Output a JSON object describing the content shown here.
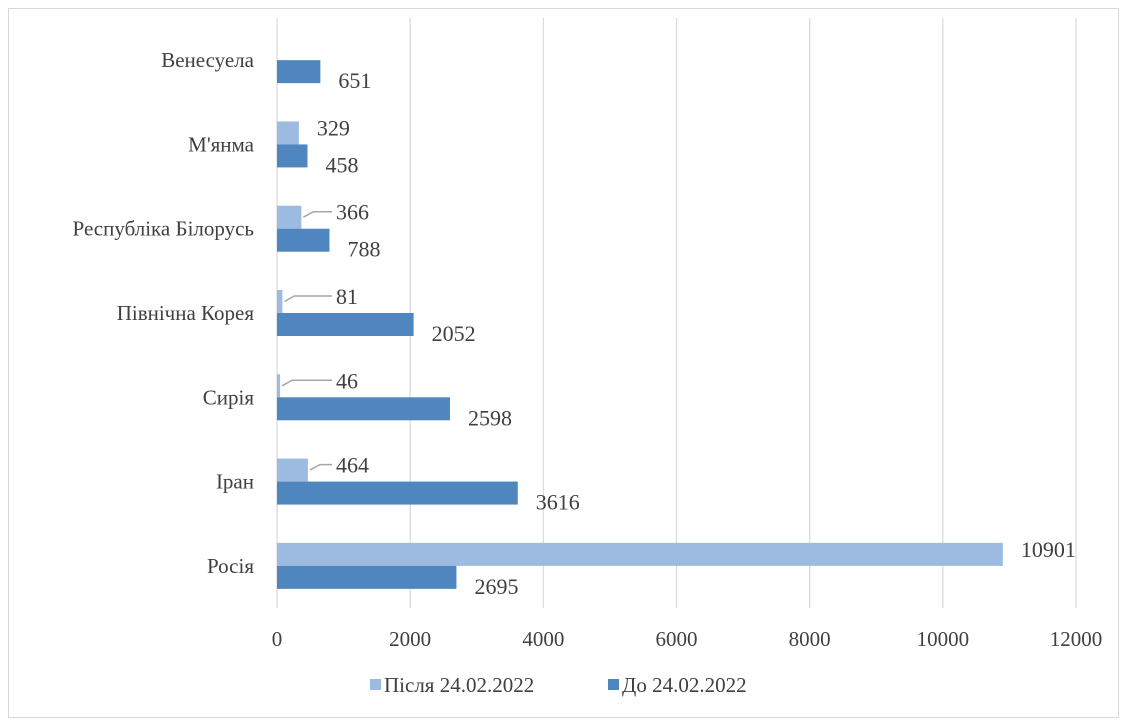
{
  "chart_data": {
    "type": "bar",
    "orientation": "horizontal",
    "title": "",
    "xlabel": "",
    "ylabel": "",
    "xlim": [
      0,
      12000
    ],
    "x_ticks": [
      0,
      2000,
      4000,
      6000,
      8000,
      10000,
      12000
    ],
    "grid": "vertical",
    "legend_position": "bottom",
    "categories": [
      "Росія",
      "Іран",
      "Сирія",
      "Північна Корея",
      "Республіка Білорусь",
      "М'янма",
      "Венесуела"
    ],
    "series": [
      {
        "name": "Після 24.02.2022",
        "color": "#9dbbe0",
        "values": [
          10901,
          464,
          46,
          81,
          366,
          329,
          0
        ]
      },
      {
        "name": "До 24.02.2022",
        "color": "#4f86c0",
        "values": [
          2695,
          3616,
          2598,
          2052,
          788,
          458,
          651
        ]
      }
    ],
    "value_labels": [
      [
        "10901",
        "464",
        "46",
        "81",
        "366",
        "329",
        ""
      ],
      [
        "2695",
        "3616",
        "2598",
        "2052",
        "788",
        "458",
        "651"
      ]
    ]
  }
}
